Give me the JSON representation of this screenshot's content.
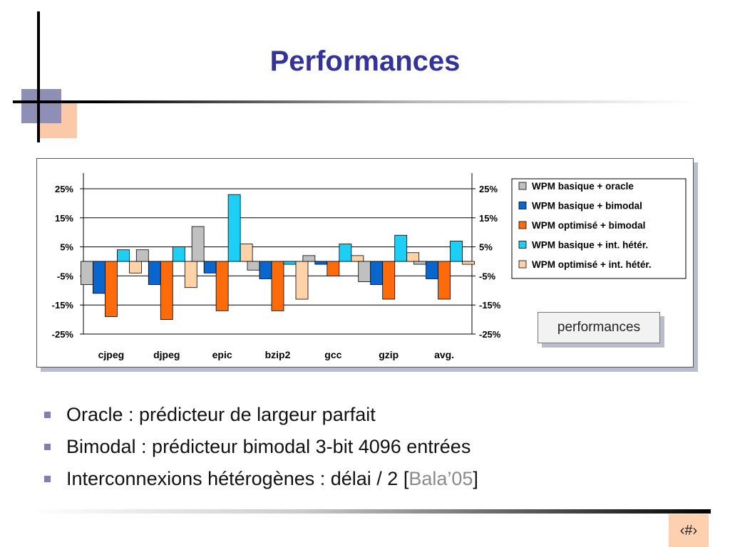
{
  "slide": {
    "title": "Performances",
    "performances_label": "performances",
    "slide_number": "‹#›"
  },
  "bullets": [
    {
      "text": "Oracle : prédicteur de largeur parfait"
    },
    {
      "text": "Bimodal : prédicteur bimodal 3-bit 4096 entrées"
    },
    {
      "text": "Interconnexions hétérogènes : délai / 2 [",
      "ref": "Bala’05",
      "suffix": "]"
    }
  ],
  "colors": {
    "title": "#333399",
    "bullet": "#7f7fb2",
    "slide_number_bg": "#fdd0b0"
  },
  "chart_data": {
    "type": "bar",
    "categories": [
      "cjpeg",
      "djpeg",
      "epic",
      "bzip2",
      "gcc",
      "gzip",
      "avg."
    ],
    "ylim": [
      -25,
      25
    ],
    "yticks": [
      -25,
      -15,
      -5,
      5,
      15,
      25
    ],
    "ytick_labels": [
      "-25%",
      "-15%",
      "-5%",
      "5%",
      "15%",
      "25%"
    ],
    "grid": true,
    "legend": "right",
    "series": [
      {
        "name": "WPM basique + oracle",
        "color": "#c0c0c0",
        "values": [
          -8,
          4,
          12,
          -3,
          2,
          -7,
          -1
        ]
      },
      {
        "name": "WPM basique + bimodal",
        "color": "#0a66cc",
        "values": [
          -11,
          -8,
          -4,
          -6,
          -1,
          -8,
          -6
        ]
      },
      {
        "name": "WPM optimisé + bimodal",
        "color": "#ff6a0a",
        "values": [
          -19,
          -20,
          -17,
          -17,
          -5,
          -13,
          -13
        ]
      },
      {
        "name": "WPM basique + int. hétér.",
        "color": "#1cd0f5",
        "values": [
          4,
          5,
          23,
          -1,
          6,
          9,
          7
        ]
      },
      {
        "name": "WPM optimisé + int. hétér.",
        "color": "#ffd2a8",
        "values": [
          -4,
          -9,
          6,
          -13,
          2,
          3,
          -1
        ]
      }
    ]
  }
}
